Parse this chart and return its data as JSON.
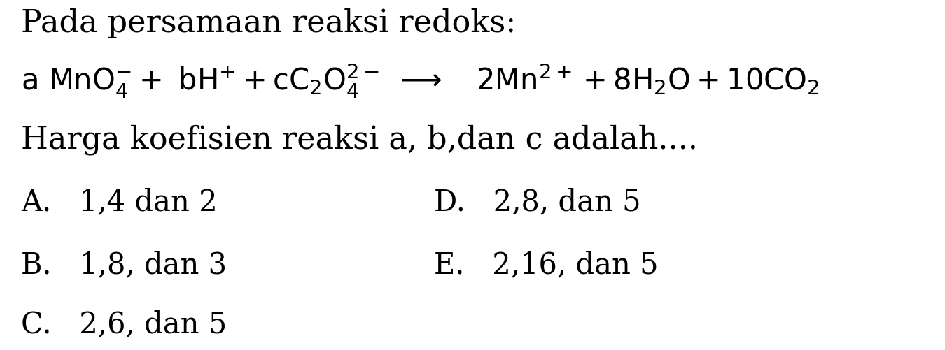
{
  "bg_color": "#ffffff",
  "text_color": "#000000",
  "line1": "Pada persamaan reaksi redoks:",
  "line3": "Harga koefisien reaksi a, b,dan c adalah....",
  "optA": "A.   1,4 dan 2",
  "optB": "B.   1,8, dan 3",
  "optC": "C.   2,6, dan 5",
  "optD": "D.   2,8, dan 5",
  "optE": "E.   2,16, dan 5",
  "equation": "$\\mathrm{a\\ MnO_4^{-}+\\ bH^{+}+cC_2O_4^{2-}\\ \\longrightarrow\\quad 2Mn^{2+}+8H_2O+10CO_2}$",
  "font_size_main": 32,
  "font_size_eq": 30,
  "font_size_opt": 30,
  "fig_width": 13.5,
  "fig_height": 5.02,
  "dpi": 100
}
